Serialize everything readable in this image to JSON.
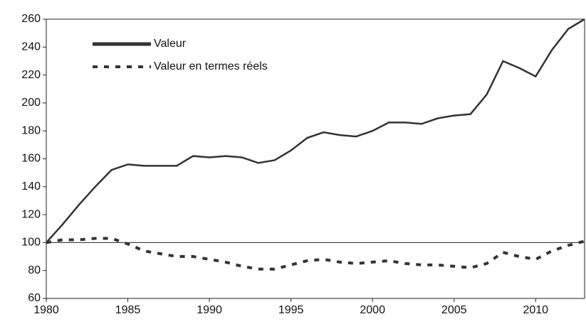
{
  "chart_data": {
    "type": "line",
    "x": [
      1980,
      1981,
      1982,
      1983,
      1984,
      1985,
      1986,
      1987,
      1988,
      1989,
      1990,
      1991,
      1992,
      1993,
      1994,
      1995,
      1996,
      1997,
      1998,
      1999,
      2000,
      2001,
      2002,
      2003,
      2004,
      2005,
      2006,
      2007,
      2008,
      2009,
      2010,
      2011,
      2012,
      2013
    ],
    "series": [
      {
        "name": "Valeur",
        "color": "#333333",
        "dash": "solid",
        "values": [
          100,
          113,
          127,
          140,
          152,
          156,
          155,
          155,
          155,
          162,
          161,
          162,
          161,
          157,
          159,
          166,
          175,
          179,
          177,
          176,
          180,
          186,
          186,
          185,
          189,
          191,
          192,
          206,
          230,
          225,
          219,
          238,
          253,
          260
        ]
      },
      {
        "name": "Valeur en termes réels",
        "color": "#333333",
        "dash": "dotted",
        "values": [
          100,
          102,
          102,
          103,
          103,
          99,
          94,
          92,
          90,
          90,
          88,
          86,
          83,
          81,
          81,
          84,
          87,
          88,
          86,
          85,
          86,
          87,
          85,
          84,
          84,
          83,
          82,
          85,
          93,
          90,
          88,
          94,
          98,
          101
        ]
      }
    ],
    "xlim": [
      1980,
      2013
    ],
    "xticks": [
      1980,
      1985,
      1990,
      1995,
      2000,
      2005,
      2010
    ],
    "ylim": [
      60,
      260
    ],
    "yticks": [
      60,
      80,
      100,
      120,
      140,
      160,
      180,
      200,
      220,
      240,
      260
    ],
    "reference_line": 100,
    "legend": "top-left"
  }
}
